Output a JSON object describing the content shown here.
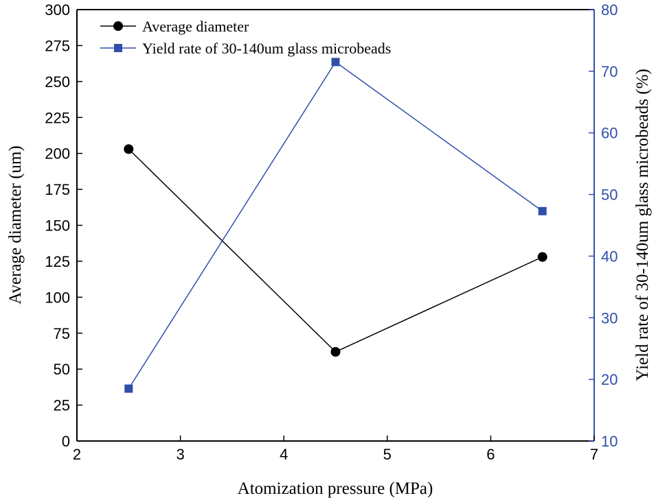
{
  "chart_data": {
    "type": "line",
    "x": [
      2.5,
      4.5,
      6.5
    ],
    "xlabel": "Atomization pressure (MPa)",
    "xlim": [
      2,
      7
    ],
    "xticks": [
      "2",
      "3",
      "4",
      "5",
      "6",
      "7"
    ],
    "ylabel_left": "Average diameter (um)",
    "ylim_left": [
      0,
      300
    ],
    "yticks_left": [
      "0",
      "25",
      "50",
      "75",
      "100",
      "125",
      "150",
      "175",
      "200",
      "225",
      "250",
      "275",
      "300"
    ],
    "ylabel_right": "Yield rate of 30-140um glass microbeads (%)",
    "ylim_right": [
      10,
      80
    ],
    "yticks_right": [
      "10",
      "20",
      "30",
      "40",
      "50",
      "60",
      "70",
      "80"
    ],
    "legend_position": "top-left",
    "series": [
      {
        "name": "Average diameter",
        "axis": "left",
        "marker": "circle",
        "color": "#000000",
        "values": [
          203,
          62,
          128
        ]
      },
      {
        "name": "Yield rate of 30-140um glass microbeads",
        "axis": "right",
        "marker": "square",
        "color": "#2f4fa8",
        "values": [
          18.5,
          71.5,
          47.3
        ]
      }
    ]
  }
}
